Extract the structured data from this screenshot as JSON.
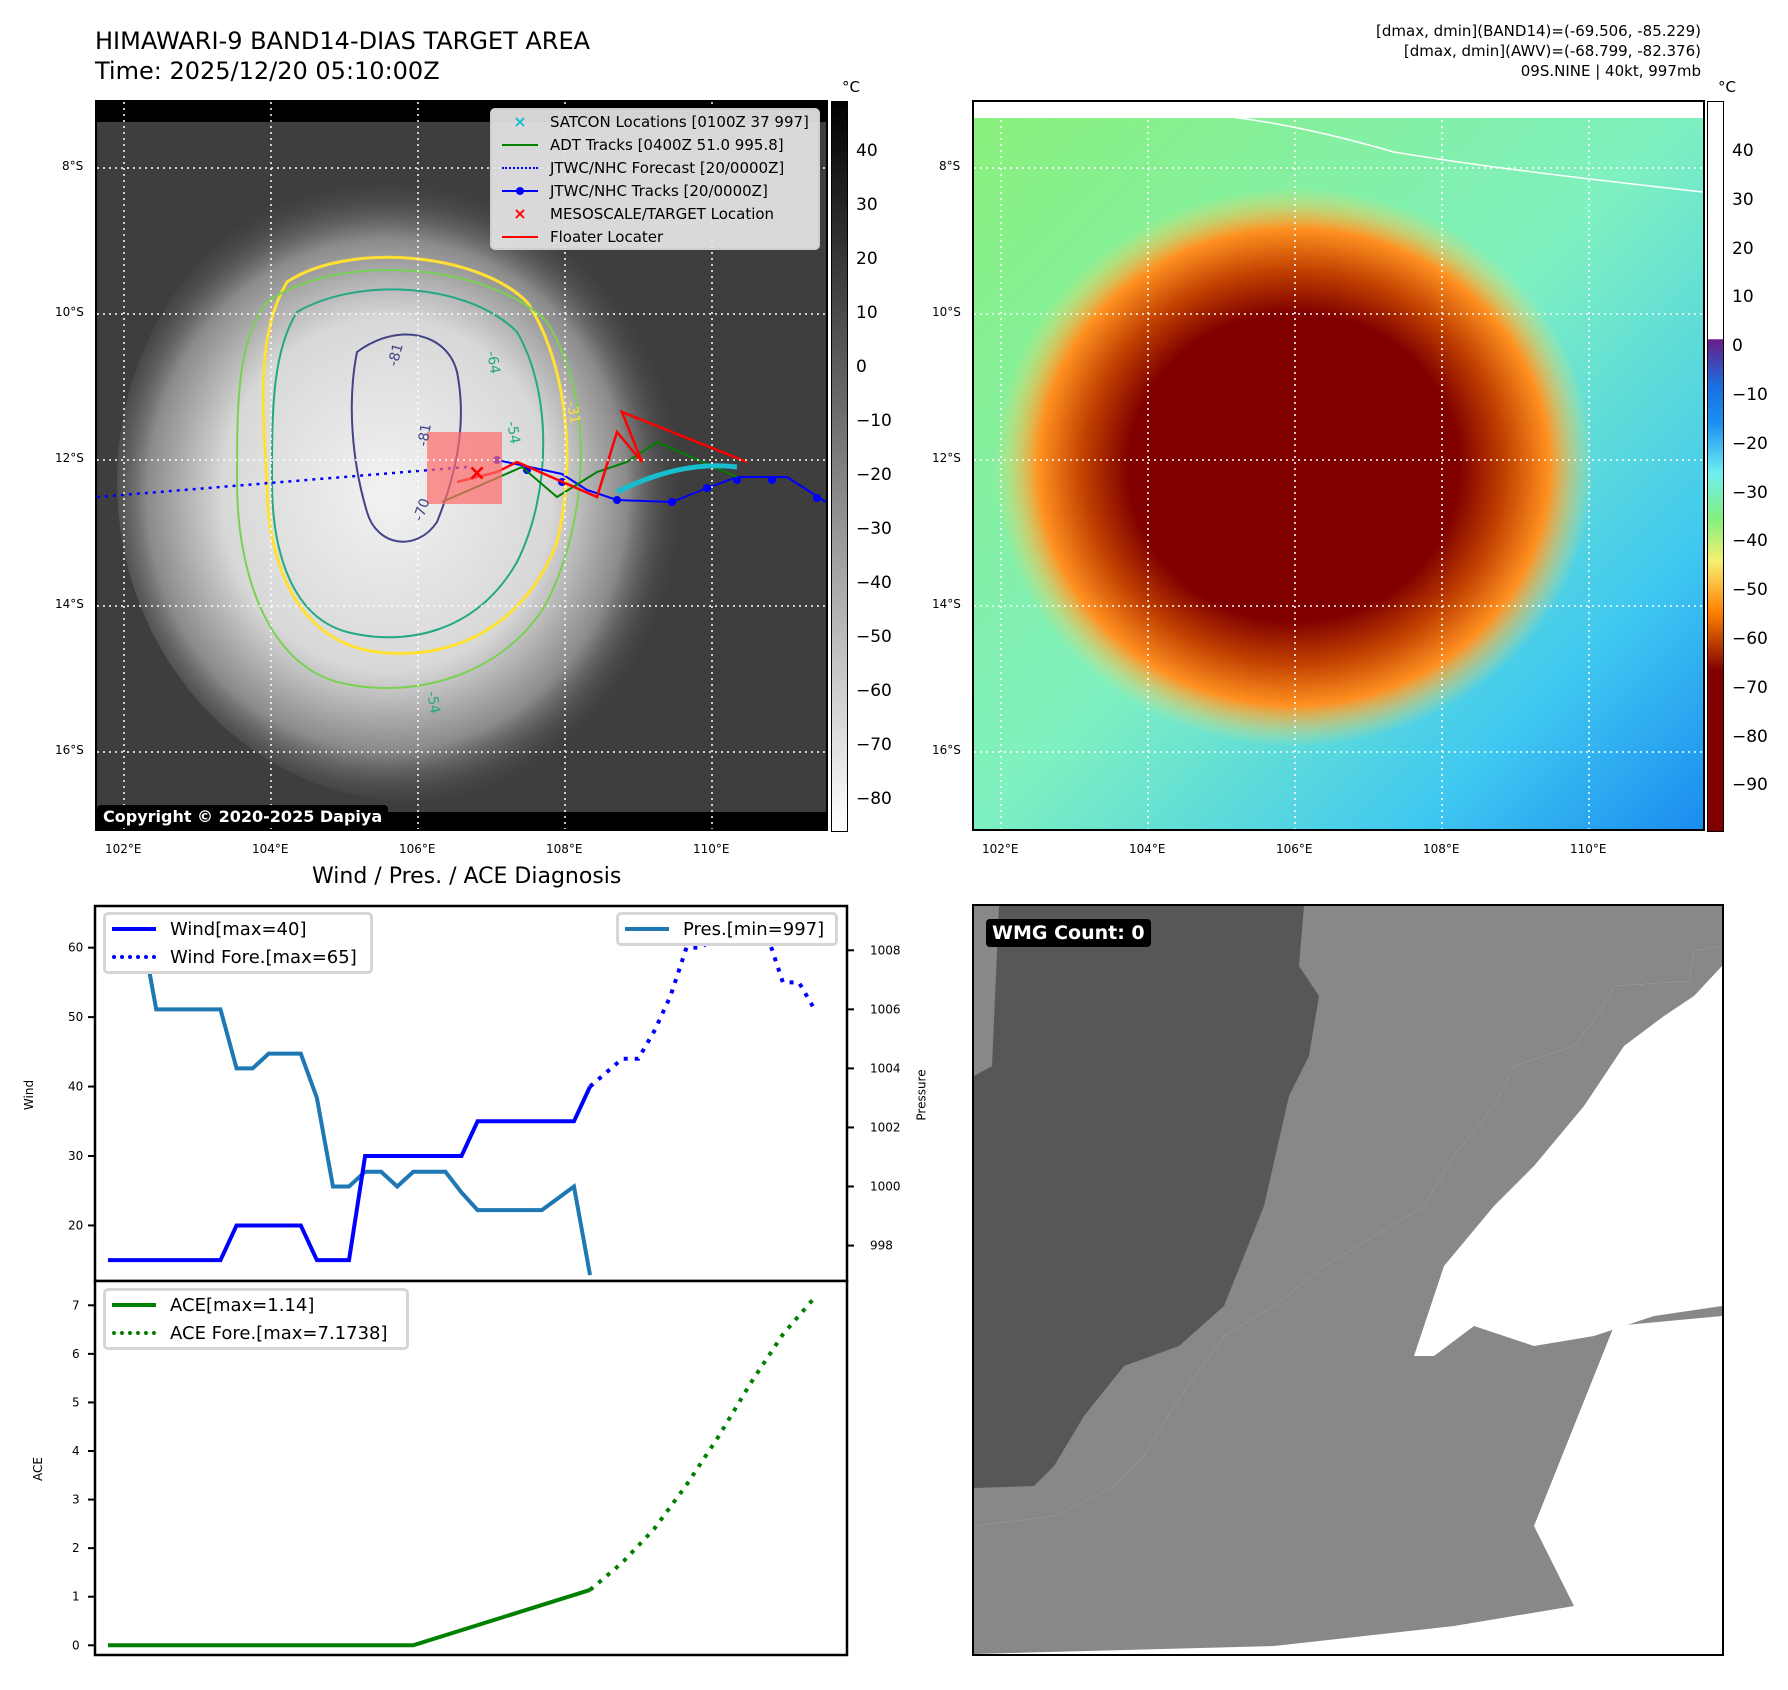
{
  "header": {
    "title_line1": "HIMAWARI-9 BAND14-DIAS TARGET AREA",
    "title_line2": "Time: 2025/12/20 05:10:00Z",
    "info_line1": "[dmax, dmin](BAND14)=(-69.506, -85.229)",
    "info_line2": "[dmax, dmin](AWV)=(-68.799, -82.376)",
    "info_line3": "09S.NINE | 40kt, 997mb"
  },
  "map_axes": {
    "lat_ticks": [
      "8°S",
      "10°S",
      "12°S",
      "14°S",
      "16°S"
    ],
    "lon_ticks": [
      "102°E",
      "104°E",
      "106°E",
      "108°E",
      "110°E"
    ],
    "unit": "°C"
  },
  "left_map": {
    "legend": [
      {
        "label": "SATCON Locations [0100Z 37 997]",
        "icon": "x-marker-cyan",
        "color": "#17becf"
      },
      {
        "label": "ADT Tracks [0400Z 51.0 995.8]",
        "icon": "solid-line-green",
        "color": "#008000"
      },
      {
        "label": "JTWC/NHC Forecast [20/0000Z]",
        "icon": "dotted-line-blue",
        "color": "#0000ff"
      },
      {
        "label": "JTWC/NHC Tracks [20/0000Z]",
        "icon": "line-dot-blue",
        "color": "#0000ff"
      },
      {
        "label": "MESOSCALE/TARGET Location",
        "icon": "x-marker-red",
        "color": "#ff0000"
      },
      {
        "label": "Floater Locater",
        "icon": "solid-line-red",
        "color": "#ff0000"
      }
    ],
    "contour_labels": [
      "-81",
      "-64",
      "-54",
      "-31",
      "-81",
      "-70",
      "-54"
    ],
    "copyright": "Copyright © 2020-2025 Dapiya",
    "colorbar_ticks": [
      "40",
      "30",
      "20",
      "10",
      "0",
      "−10",
      "−20",
      "−30",
      "−40",
      "−50",
      "−60",
      "−70",
      "−80"
    ]
  },
  "right_map": {
    "colorbar_ticks": [
      "40",
      "30",
      "20",
      "10",
      "0",
      "−10",
      "−20",
      "−30",
      "−40",
      "−50",
      "−60",
      "−70",
      "−80",
      "−90"
    ]
  },
  "wmg_panel": {
    "badge": "WMG Count: 0"
  },
  "chart_data": [
    {
      "type": "line",
      "title": "Wind / Pres. / ACE Diagnosis",
      "ylabel": "Wind",
      "ylabel_right": "Pressure",
      "ylim": [
        12,
        66
      ],
      "ylim_right": [
        996.8,
        1009.5
      ],
      "yticks": [
        "60",
        "50",
        "40",
        "30",
        "20"
      ],
      "yticks_right": [
        "1008",
        "1006",
        "1004",
        "1002",
        "1000",
        "998"
      ],
      "x": [
        0,
        1,
        2,
        3,
        4,
        5,
        6,
        7,
        8,
        9,
        10,
        11,
        12,
        13,
        14,
        15,
        16,
        17,
        18,
        19,
        20,
        21,
        22,
        23,
        24,
        25,
        26,
        27,
        28,
        29,
        30,
        31,
        32,
        33,
        34,
        35,
        36,
        37,
        38,
        39,
        40,
        41,
        42,
        43,
        44
      ],
      "series": [
        {
          "name": "Wind[max=40]",
          "color": "#0000ff",
          "style": "solid",
          "x": [
            0,
            7,
            8,
            12,
            13,
            15,
            16,
            17,
            18,
            20,
            21,
            22,
            23,
            24,
            25,
            27,
            29,
            30
          ],
          "values": [
            15,
            15,
            20,
            20,
            15,
            15,
            30,
            30,
            30,
            30,
            30,
            30,
            35,
            35,
            35,
            35,
            35,
            40
          ]
        },
        {
          "name": "Wind Fore.[max=65]",
          "color": "#0000ff",
          "style": "dotted",
          "x": [
            30,
            32,
            33,
            34,
            35,
            36,
            37,
            38,
            39,
            40,
            41,
            42,
            43,
            44
          ],
          "values": [
            40,
            44,
            44,
            48,
            53,
            60,
            60,
            63,
            63,
            62,
            62,
            55,
            55,
            51
          ]
        },
        {
          "name": "Pres.[min=997]",
          "color": "#1f77b4",
          "style": "solid",
          "axis": "right",
          "x": [
            0,
            2,
            3,
            5,
            7,
            8,
            9,
            10,
            11,
            12,
            13,
            14,
            15,
            16,
            17,
            18,
            19,
            20,
            21,
            22,
            23,
            24,
            25,
            26,
            27,
            29,
            30
          ],
          "values": [
            1009,
            1009,
            1006,
            1006,
            1006,
            1004,
            1004,
            1004.5,
            1004.5,
            1004.5,
            1003,
            1000,
            1000,
            1000.5,
            1000.5,
            1000,
            1000.5,
            1000.5,
            1000.5,
            999.8,
            999.2,
            999.2,
            999.2,
            999.2,
            999.2,
            1000,
            997
          ]
        }
      ]
    },
    {
      "type": "line",
      "ylabel": "ACE",
      "ylim": [
        -0.2,
        7.5
      ],
      "yticks": [
        "7",
        "6",
        "5",
        "4",
        "3",
        "2",
        "1",
        "0"
      ],
      "series": [
        {
          "name": "ACE[max=1.14]",
          "color": "#008000",
          "style": "solid",
          "x": [
            0,
            19,
            30
          ],
          "values": [
            0,
            0,
            1.14
          ]
        },
        {
          "name": "ACE Fore.[max=7.1738]",
          "color": "#008000",
          "style": "dotted",
          "x": [
            30,
            32,
            34,
            36,
            38,
            40,
            42,
            44
          ],
          "values": [
            1.14,
            1.7,
            2.4,
            3.3,
            4.3,
            5.4,
            6.4,
            7.17
          ]
        }
      ]
    }
  ]
}
